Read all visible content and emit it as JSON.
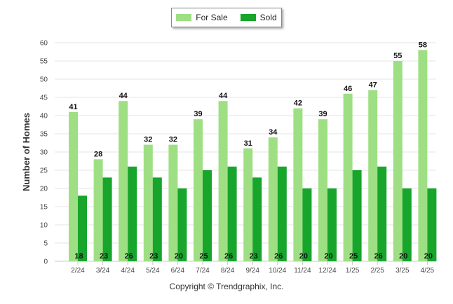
{
  "legend": {
    "items": [
      {
        "label": "For Sale",
        "color": "#9edf83"
      },
      {
        "label": "Sold",
        "color": "#17a52c"
      }
    ]
  },
  "copyright": "Copyright © Trendgraphix, Inc.",
  "chart_data": {
    "type": "bar",
    "ylabel": "Number of Homes",
    "xlabel": "",
    "ylim": [
      0,
      60
    ],
    "yticks": [
      0,
      5,
      10,
      15,
      20,
      25,
      30,
      35,
      40,
      45,
      50,
      55,
      60
    ],
    "grid": true,
    "legend_position": "top-center",
    "categories": [
      "2/24",
      "3/24",
      "4/24",
      "5/24",
      "6/24",
      "7/24",
      "8/24",
      "9/24",
      "10/24",
      "11/24",
      "12/24",
      "1/25",
      "2/25",
      "3/25",
      "4/25"
    ],
    "series": [
      {
        "name": "For Sale",
        "color": "#9edf83",
        "label_position": "top",
        "values": [
          41,
          28,
          44,
          32,
          32,
          39,
          44,
          31,
          34,
          42,
          39,
          46,
          47,
          55,
          58
        ]
      },
      {
        "name": "Sold",
        "color": "#17a52c",
        "label_position": "bottom",
        "values": [
          18,
          23,
          26,
          23,
          20,
          25,
          26,
          23,
          26,
          20,
          20,
          25,
          26,
          20,
          20
        ]
      }
    ]
  }
}
